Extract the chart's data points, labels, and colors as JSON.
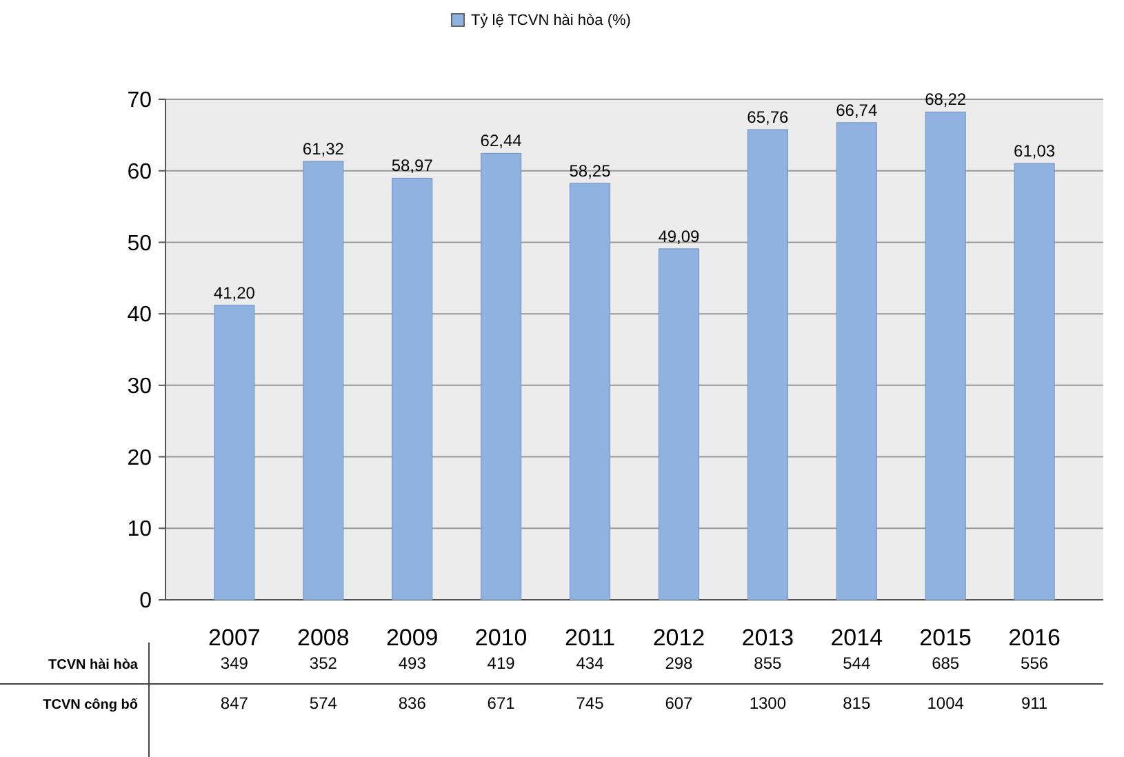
{
  "chart_data": {
    "type": "bar",
    "categories": [
      "2007",
      "2008",
      "2009",
      "2010",
      "2011",
      "2012",
      "2013",
      "2014",
      "2015",
      "2016"
    ],
    "series": [
      {
        "name": "Tỷ lệ TCVN hài hòa (%)",
        "color": "#8fb2e0",
        "values": [
          41.2,
          61.32,
          58.97,
          62.44,
          58.25,
          49.09,
          65.76,
          66.74,
          68.22,
          61.03
        ],
        "value_labels": [
          "41,20",
          "61,32",
          "58,97",
          "62,44",
          "58,25",
          "49,09",
          "65,76",
          "66,74",
          "68,22",
          "61,03"
        ]
      }
    ],
    "ylim": [
      0,
      70
    ],
    "yticks": [
      0,
      10,
      20,
      30,
      40,
      50,
      60,
      70
    ],
    "grid": "y",
    "legend": "top",
    "annotations": [
      "TCVN hài hòa",
      "349",
      "352",
      "493",
      "419",
      "434",
      "298",
      "855",
      "544",
      "685",
      "556",
      "TCVN công bố",
      "847",
      "574",
      "836",
      "671",
      "745",
      "607",
      "1300",
      "815",
      "1004",
      "911"
    ]
  }
}
